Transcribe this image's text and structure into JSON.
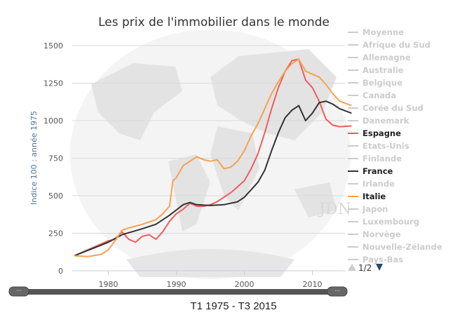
{
  "chart_data": {
    "type": "line",
    "title": "Les prix de l'immobilier dans le monde",
    "xlabel": "",
    "ylabel": "Indice 100 : année 1975",
    "xlim": [
      1975,
      2016
    ],
    "ylim": [
      0,
      1500
    ],
    "x_ticks": [
      "1980",
      "1990",
      "2000",
      "2010"
    ],
    "y_ticks": [
      "0",
      "250",
      "500",
      "750",
      "1000",
      "1250",
      "1500"
    ],
    "grid": true,
    "legend_position": "right",
    "legend": [
      {
        "name": "Moyenne",
        "active": false
      },
      {
        "name": "Afrique du Sud",
        "active": false
      },
      {
        "name": "Allemagne",
        "active": false
      },
      {
        "name": "Australie",
        "active": false
      },
      {
        "name": "Belgique",
        "active": false
      },
      {
        "name": "Canada",
        "active": false
      },
      {
        "name": "Corée du Sud",
        "active": false
      },
      {
        "name": "Danemark",
        "active": false
      },
      {
        "name": "Espagne",
        "active": true,
        "color": "#f15c5c"
      },
      {
        "name": "Etats-Unis",
        "active": false
      },
      {
        "name": "Finlande",
        "active": false
      },
      {
        "name": "France",
        "active": true,
        "color": "#333333"
      },
      {
        "name": "Irlande",
        "active": false
      },
      {
        "name": "Italie",
        "active": true,
        "color": "#f7a24f"
      },
      {
        "name": "Japon",
        "active": false
      },
      {
        "name": "Luxembourg",
        "active": false
      },
      {
        "name": "Norvège",
        "active": false
      },
      {
        "name": "Nouvelle-Zélande",
        "active": false
      },
      {
        "name": "Pays-Bas",
        "active": false
      }
    ],
    "legend_page": "1/2",
    "series": [
      {
        "name": "Espagne",
        "color": "#f15c5c",
        "x": [
          1975,
          1977,
          1979,
          1980,
          1981,
          1982,
          1983,
          1984,
          1985,
          1986,
          1987,
          1988,
          1989,
          1990,
          1991,
          1992,
          1993,
          1994,
          1995,
          1996,
          1997,
          1998,
          1999,
          2000,
          2001,
          2002,
          2003,
          2004,
          2005,
          2006,
          2007,
          2008,
          2009,
          2010,
          2011,
          2012,
          2013,
          2014,
          2015.75
        ],
        "y": [
          100,
          140,
          180,
          200,
          210,
          260,
          210,
          190,
          230,
          240,
          210,
          260,
          330,
          380,
          410,
          450,
          430,
          430,
          440,
          460,
          490,
          520,
          560,
          600,
          680,
          780,
          920,
          1080,
          1220,
          1330,
          1400,
          1410,
          1270,
          1220,
          1130,
          1010,
          970,
          960,
          965
        ]
      },
      {
        "name": "France",
        "color": "#333333",
        "x": [
          1975,
          1980,
          1982,
          1985,
          1987,
          1989,
          1991,
          1992,
          1993,
          1995,
          1997,
          1999,
          2000,
          2001,
          2002,
          2003,
          2004,
          2005,
          2006,
          2007,
          2008,
          2009,
          2010,
          2011,
          2012,
          2013,
          2014,
          2015.75
        ],
        "y": [
          100,
          190,
          240,
          280,
          310,
          370,
          440,
          455,
          440,
          435,
          440,
          460,
          490,
          540,
          590,
          670,
          800,
          920,
          1020,
          1070,
          1100,
          1000,
          1050,
          1120,
          1130,
          1110,
          1080,
          1050
        ]
      },
      {
        "name": "Italie",
        "color": "#f7a24f",
        "x": [
          1975,
          1977,
          1979,
          1980,
          1981,
          1982,
          1983,
          1985,
          1987,
          1988,
          1989,
          1989.5,
          1990,
          1991,
          1992,
          1993,
          1994,
          1995,
          1996,
          1997,
          1998,
          1999,
          2000,
          2001,
          2002,
          2003,
          2004,
          2005,
          2006,
          2007,
          2008,
          2009,
          2010,
          2011,
          2012,
          2013,
          2014,
          2015.75
        ],
        "y": [
          100,
          95,
          110,
          140,
          200,
          270,
          285,
          310,
          340,
          380,
          430,
          600,
          620,
          700,
          730,
          760,
          740,
          730,
          740,
          680,
          690,
          730,
          800,
          900,
          980,
          1080,
          1180,
          1260,
          1330,
          1380,
          1410,
          1330,
          1310,
          1290,
          1240,
          1180,
          1130,
          1100
        ]
      }
    ]
  },
  "watermark": "JDN",
  "range_label": "T1 1975 - T3 2015"
}
